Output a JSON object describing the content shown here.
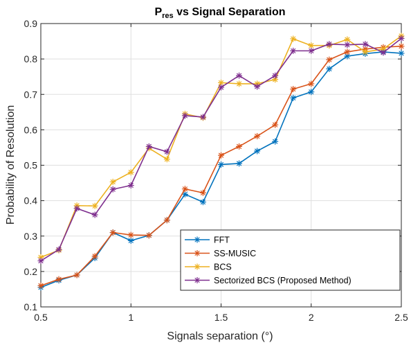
{
  "chart_data": {
    "type": "line",
    "title_main": "P",
    "title_sub": "res",
    "title_rest": " vs Signal Separation",
    "xlabel": "Signals separation (°)",
    "ylabel": "Probability of Resolution",
    "xlim": [
      0.5,
      2.5
    ],
    "ylim": [
      0.1,
      0.9
    ],
    "xticks": [
      0.5,
      1,
      1.5,
      2,
      2.5
    ],
    "xtick_labels": [
      "0.5",
      "1",
      "1.5",
      "2",
      "2.5"
    ],
    "yticks": [
      0.1,
      0.2,
      0.3,
      0.4,
      0.5,
      0.6,
      0.7,
      0.8,
      0.9
    ],
    "ytick_labels": [
      "0.1",
      "0.2",
      "0.3",
      "0.4",
      "0.5",
      "0.6",
      "0.7",
      "0.8",
      "0.9"
    ],
    "grid": true,
    "legend_position": "bottom-right",
    "marker": "asterisk",
    "x": [
      0.5,
      0.6,
      0.7,
      0.8,
      0.9,
      1.0,
      1.1,
      1.2,
      1.3,
      1.4,
      1.5,
      1.6,
      1.7,
      1.8,
      1.9,
      2.0,
      2.1,
      2.2,
      2.3,
      2.4,
      2.5
    ],
    "series": [
      {
        "name": "FFT",
        "color": "#0072BD",
        "values": [
          0.155,
          0.175,
          0.19,
          0.238,
          0.31,
          0.287,
          0.302,
          0.345,
          0.418,
          0.396,
          0.502,
          0.505,
          0.54,
          0.567,
          0.69,
          0.707,
          0.772,
          0.808,
          0.815,
          0.82,
          0.816
        ]
      },
      {
        "name": "SS-MUSIC",
        "color": "#D95319",
        "values": [
          0.16,
          0.178,
          0.19,
          0.243,
          0.31,
          0.303,
          0.302,
          0.345,
          0.433,
          0.422,
          0.528,
          0.553,
          0.582,
          0.614,
          0.715,
          0.73,
          0.798,
          0.82,
          0.828,
          0.833,
          0.836
        ]
      },
      {
        "name": "BCS",
        "color": "#EDB120",
        "values": [
          0.24,
          0.26,
          0.386,
          0.385,
          0.453,
          0.48,
          0.548,
          0.517,
          0.645,
          0.634,
          0.733,
          0.73,
          0.73,
          0.742,
          0.857,
          0.838,
          0.838,
          0.855,
          0.82,
          0.828,
          0.865
        ]
      },
      {
        "name": "Sectorized BCS (Proposed Method)",
        "color": "#7E2F8E",
        "values": [
          0.23,
          0.262,
          0.378,
          0.36,
          0.432,
          0.443,
          0.553,
          0.538,
          0.64,
          0.636,
          0.72,
          0.753,
          0.722,
          0.753,
          0.823,
          0.823,
          0.842,
          0.84,
          0.842,
          0.818,
          0.858
        ]
      }
    ]
  }
}
